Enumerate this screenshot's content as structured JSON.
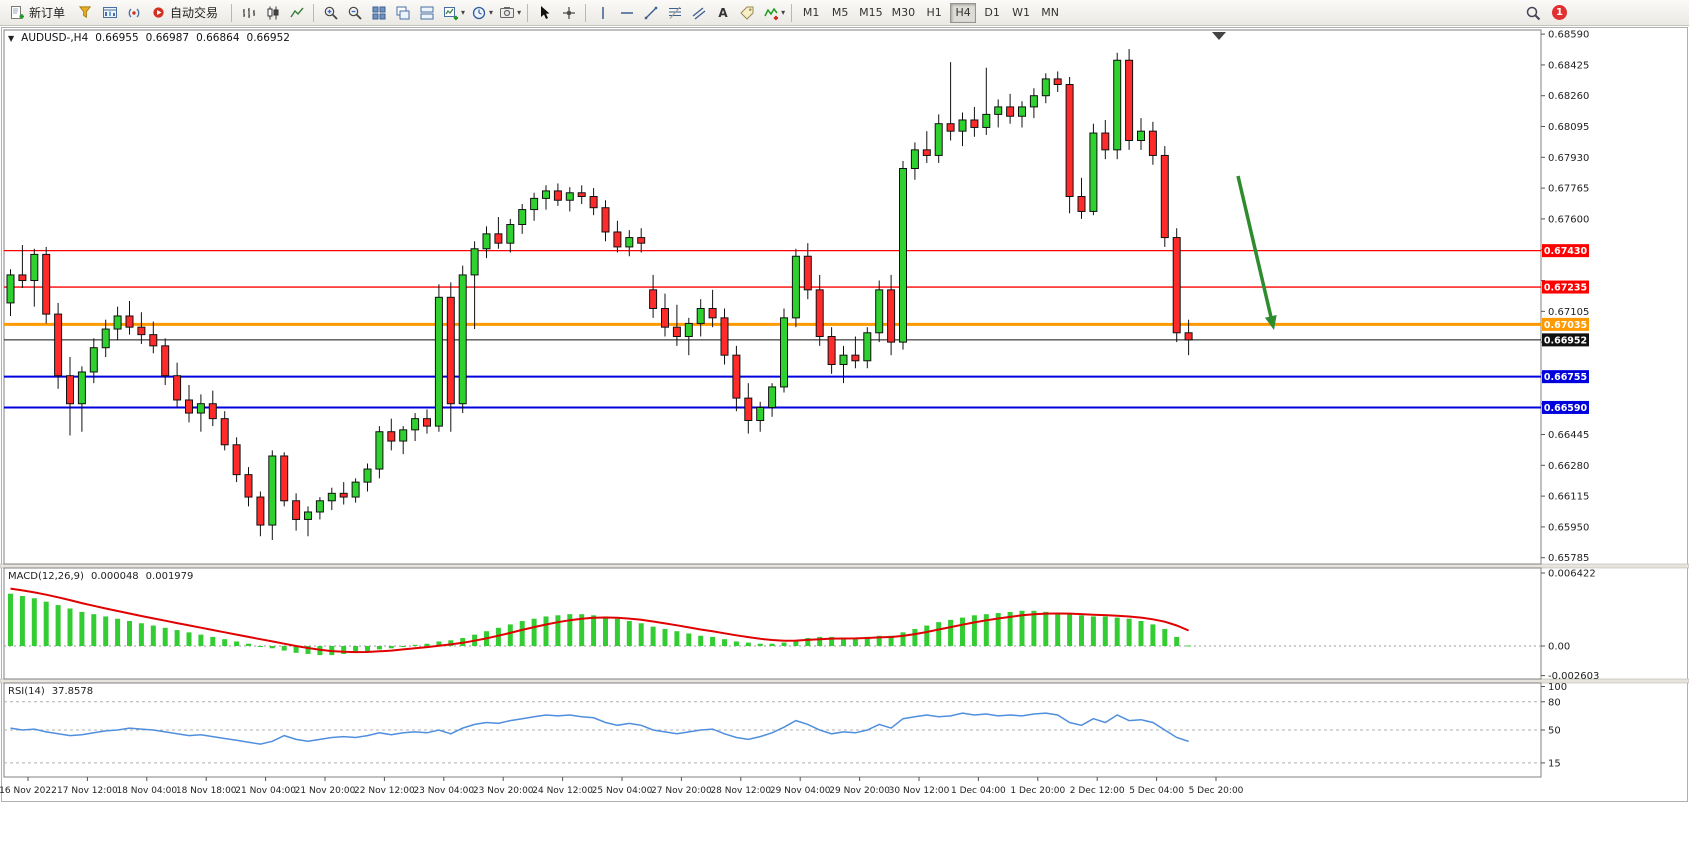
{
  "toolbar": {
    "new_order": "新订单",
    "auto_trading": "自动交易",
    "timeframes": [
      "M1",
      "M5",
      "M15",
      "M30",
      "H1",
      "H4",
      "D1",
      "W1",
      "MN"
    ],
    "active_timeframe": "H4",
    "notification_count": "1"
  },
  "chart": {
    "symbol": "AUDUSD-,H4",
    "open": "0.66955",
    "high": "0.66987",
    "low": "0.66864",
    "close": "0.66952"
  },
  "indicators": {
    "macd": {
      "name": "MACD(12,26,9)",
      "value": "0.000048",
      "signal_value": "0.001979",
      "axis_labels": [
        "0.006422",
        "0.00",
        "-0.002603"
      ]
    },
    "rsi": {
      "name": "RSI(14)",
      "value": "37.8578",
      "axis_labels": [
        "100",
        "80",
        "50",
        "15"
      ],
      "levels": [
        80,
        50,
        15
      ]
    }
  },
  "chart_data": {
    "type": "candlestick",
    "symbol": "AUDUSD",
    "timeframe": "H4",
    "colors": {
      "up": "#2fd12f",
      "down": "#ff2b2b",
      "outline": "#111111",
      "macd_hist": "#33cc33",
      "macd_signal": "#e00000",
      "rsi_line": "#4f8fde",
      "arrow": "#2e8b2e"
    },
    "price_gridlines": [
      0.6859,
      0.68425,
      0.6826,
      0.68095,
      0.6793,
      0.67765,
      0.676,
      0.67435,
      0.6727,
      0.67105,
      0.6694,
      0.66775,
      0.6661,
      0.66445,
      0.6628,
      0.66115,
      0.6595,
      0.65785
    ],
    "hlines": [
      {
        "price": 0.6743,
        "label": "0.67430",
        "color": "#ff0000",
        "width": 1.3
      },
      {
        "price": 0.67235,
        "label": "0.67235",
        "color": "#ff0000",
        "width": 1.3
      },
      {
        "price": 0.67035,
        "label": "0.67035",
        "color": "#ff9900",
        "width": 3
      },
      {
        "price": 0.66755,
        "label": "0.66755",
        "color": "#0000dd",
        "width": 2
      },
      {
        "price": 0.6659,
        "label": "0.66590",
        "color": "#0000dd",
        "width": 2
      }
    ],
    "current_price": {
      "value": 0.66952,
      "label": "0.66952",
      "color": "#111111"
    },
    "arrow": {
      "from": [
        1238,
        176
      ],
      "to": [
        1274,
        330
      ]
    },
    "time_labels": [
      "16 Nov 2022",
      "17 Nov 12:00",
      "18 Nov 04:00",
      "18 Nov 18:00",
      "21 Nov 04:00",
      "21 Nov 20:00",
      "22 Nov 12:00",
      "23 Nov 04:00",
      "23 Nov 20:00",
      "24 Nov 12:00",
      "25 Nov 04:00",
      "27 Nov 20:00",
      "28 Nov 12:00",
      "29 Nov 04:00",
      "29 Nov 20:00",
      "30 Nov 12:00",
      "1 Dec 04:00",
      "1 Dec 20:00",
      "2 Dec 12:00",
      "5 Dec 04:00",
      "5 Dec 20:00"
    ],
    "candles": [
      [
        0.6715,
        0.6733,
        0.6708,
        0.673
      ],
      [
        0.673,
        0.6746,
        0.6723,
        0.6727
      ],
      [
        0.6727,
        0.6744,
        0.6713,
        0.6741
      ],
      [
        0.6741,
        0.6745,
        0.6704,
        0.6709
      ],
      [
        0.6709,
        0.6715,
        0.6669,
        0.6676
      ],
      [
        0.6676,
        0.6686,
        0.6644,
        0.6661
      ],
      [
        0.6661,
        0.6681,
        0.6646,
        0.6678
      ],
      [
        0.6678,
        0.6696,
        0.6672,
        0.6691
      ],
      [
        0.6691,
        0.6706,
        0.6686,
        0.6701
      ],
      [
        0.6701,
        0.6713,
        0.6695,
        0.6708
      ],
      [
        0.6708,
        0.6716,
        0.6698,
        0.6702
      ],
      [
        0.6702,
        0.671,
        0.6693,
        0.6698
      ],
      [
        0.6698,
        0.6705,
        0.6688,
        0.6692
      ],
      [
        0.6692,
        0.6696,
        0.6671,
        0.6676
      ],
      [
        0.6676,
        0.6683,
        0.6659,
        0.6663
      ],
      [
        0.6663,
        0.6671,
        0.6651,
        0.6656
      ],
      [
        0.6656,
        0.6666,
        0.6646,
        0.6661
      ],
      [
        0.6661,
        0.6668,
        0.6649,
        0.6653
      ],
      [
        0.6653,
        0.6657,
        0.6636,
        0.6639
      ],
      [
        0.6639,
        0.6643,
        0.6619,
        0.6623
      ],
      [
        0.6623,
        0.6627,
        0.6606,
        0.6611
      ],
      [
        0.6611,
        0.6614,
        0.659,
        0.6596
      ],
      [
        0.6596,
        0.6636,
        0.6588,
        0.6633
      ],
      [
        0.6633,
        0.6635,
        0.6606,
        0.6609
      ],
      [
        0.6609,
        0.6613,
        0.6593,
        0.6599
      ],
      [
        0.6599,
        0.6606,
        0.659,
        0.6603
      ],
      [
        0.6603,
        0.6611,
        0.6599,
        0.6609
      ],
      [
        0.6609,
        0.6616,
        0.6604,
        0.6613
      ],
      [
        0.6613,
        0.6619,
        0.6607,
        0.6611
      ],
      [
        0.6611,
        0.6621,
        0.6608,
        0.6619
      ],
      [
        0.6619,
        0.6629,
        0.6614,
        0.6626
      ],
      [
        0.6626,
        0.6649,
        0.6621,
        0.6646
      ],
      [
        0.6646,
        0.6653,
        0.6636,
        0.6641
      ],
      [
        0.6641,
        0.6649,
        0.6634,
        0.6647
      ],
      [
        0.6647,
        0.6656,
        0.6641,
        0.6653
      ],
      [
        0.6653,
        0.6658,
        0.6645,
        0.6649
      ],
      [
        0.6649,
        0.6725,
        0.6646,
        0.6718
      ],
      [
        0.6718,
        0.6726,
        0.6646,
        0.6661
      ],
      [
        0.6661,
        0.6735,
        0.6656,
        0.673
      ],
      [
        0.673,
        0.6748,
        0.6701,
        0.6744
      ],
      [
        0.6744,
        0.6756,
        0.6739,
        0.6752
      ],
      [
        0.6752,
        0.6761,
        0.6744,
        0.6747
      ],
      [
        0.6747,
        0.676,
        0.6742,
        0.6757
      ],
      [
        0.6757,
        0.6768,
        0.6752,
        0.6765
      ],
      [
        0.6765,
        0.6774,
        0.6759,
        0.6771
      ],
      [
        0.6771,
        0.6778,
        0.6765,
        0.6775
      ],
      [
        0.6775,
        0.6779,
        0.6767,
        0.677
      ],
      [
        0.677,
        0.6777,
        0.6764,
        0.6774
      ],
      [
        0.6774,
        0.6778,
        0.6768,
        0.6772
      ],
      [
        0.6772,
        0.67765,
        0.6762,
        0.6766
      ],
      [
        0.6766,
        0.677,
        0.6748,
        0.6753
      ],
      [
        0.6753,
        0.6759,
        0.6742,
        0.6745
      ],
      [
        0.6745,
        0.6754,
        0.674,
        0.675
      ],
      [
        0.675,
        0.6755,
        0.6742,
        0.6747
      ],
      [
        0.6722,
        0.673,
        0.6707,
        0.6712
      ],
      [
        0.6712,
        0.672,
        0.6697,
        0.6702
      ],
      [
        0.6702,
        0.6714,
        0.6692,
        0.6697
      ],
      [
        0.6697,
        0.6707,
        0.6687,
        0.6704
      ],
      [
        0.6704,
        0.6717,
        0.6697,
        0.6712
      ],
      [
        0.6712,
        0.6722,
        0.6702,
        0.6707
      ],
      [
        0.6707,
        0.6712,
        0.6682,
        0.6687
      ],
      [
        0.6687,
        0.6692,
        0.6657,
        0.6664
      ],
      [
        0.6664,
        0.6672,
        0.6645,
        0.6652
      ],
      [
        0.6652,
        0.6662,
        0.6646,
        0.6659
      ],
      [
        0.6659,
        0.6672,
        0.6654,
        0.667
      ],
      [
        0.667,
        0.6712,
        0.6667,
        0.6707
      ],
      [
        0.6707,
        0.6744,
        0.6702,
        0.674
      ],
      [
        0.674,
        0.6747,
        0.6717,
        0.6722
      ],
      [
        0.6722,
        0.673,
        0.6692,
        0.6697
      ],
      [
        0.6697,
        0.6702,
        0.6677,
        0.6682
      ],
      [
        0.6682,
        0.6692,
        0.6672,
        0.6687
      ],
      [
        0.6687,
        0.6697,
        0.668,
        0.6684
      ],
      [
        0.6684,
        0.6702,
        0.668,
        0.6699
      ],
      [
        0.6699,
        0.6727,
        0.6694,
        0.6722
      ],
      [
        0.6722,
        0.673,
        0.6687,
        0.6694
      ],
      [
        0.6694,
        0.6791,
        0.669,
        0.6787
      ],
      [
        0.6787,
        0.6801,
        0.6781,
        0.6797
      ],
      [
        0.6797,
        0.6807,
        0.679,
        0.6794
      ],
      [
        0.6794,
        0.6816,
        0.679,
        0.6811
      ],
      [
        0.6811,
        0.6844,
        0.6802,
        0.6807
      ],
      [
        0.6807,
        0.6817,
        0.6799,
        0.6813
      ],
      [
        0.6813,
        0.682,
        0.6804,
        0.6809
      ],
      [
        0.6809,
        0.6841,
        0.6805,
        0.6816
      ],
      [
        0.6816,
        0.6824,
        0.6809,
        0.682
      ],
      [
        0.682,
        0.6827,
        0.6811,
        0.6815
      ],
      [
        0.6815,
        0.6823,
        0.6809,
        0.682
      ],
      [
        0.682,
        0.683,
        0.6814,
        0.6826
      ],
      [
        0.6826,
        0.6838,
        0.6822,
        0.6835
      ],
      [
        0.6835,
        0.6839,
        0.6828,
        0.6832
      ],
      [
        0.6832,
        0.6836,
        0.6763,
        0.6772
      ],
      [
        0.6772,
        0.6782,
        0.676,
        0.6764
      ],
      [
        0.6764,
        0.6811,
        0.6762,
        0.6806
      ],
      [
        0.6806,
        0.6813,
        0.6792,
        0.6797
      ],
      [
        0.6797,
        0.6849,
        0.6792,
        0.6845
      ],
      [
        0.6845,
        0.6851,
        0.6797,
        0.6802
      ],
      [
        0.6802,
        0.6814,
        0.6797,
        0.6807
      ],
      [
        0.6807,
        0.6812,
        0.6789,
        0.6794
      ],
      [
        0.6794,
        0.6799,
        0.6745,
        0.675
      ],
      [
        0.675,
        0.6755,
        0.6694,
        0.6699
      ],
      [
        0.6699,
        0.6706,
        0.6687,
        0.66952
      ]
    ],
    "macd_histogram": [
      0.0046,
      0.0044,
      0.0042,
      0.0039,
      0.0036,
      0.0033,
      0.003,
      0.0028,
      0.0026,
      0.0024,
      0.0022,
      0.002,
      0.0018,
      0.0016,
      0.0014,
      0.0012,
      0.001,
      0.0008,
      0.0006,
      0.0004,
      0.0002,
      0.0,
      -0.0002,
      -0.0004,
      -0.0006,
      -0.0007,
      -0.0008,
      -0.0008,
      -0.0007,
      -0.0006,
      -0.0005,
      -0.0003,
      -0.0002,
      0.0,
      0.0001,
      0.0002,
      0.0004,
      0.0005,
      0.0007,
      0.001,
      0.0013,
      0.0016,
      0.0019,
      0.0022,
      0.0024,
      0.0026,
      0.0027,
      0.0028,
      0.0028,
      0.0027,
      0.0026,
      0.0024,
      0.0022,
      0.002,
      0.0017,
      0.0015,
      0.0013,
      0.0011,
      0.0009,
      0.0008,
      0.0006,
      0.0004,
      0.0003,
      0.0002,
      0.0002,
      0.0003,
      0.0005,
      0.0007,
      0.0008,
      0.0008,
      0.0007,
      0.0007,
      0.0008,
      0.0009,
      0.0009,
      0.0012,
      0.0015,
      0.0018,
      0.0021,
      0.0023,
      0.0025,
      0.0027,
      0.0028,
      0.0029,
      0.003,
      0.0031,
      0.0031,
      0.003,
      0.0029,
      0.0028,
      0.0027,
      0.0026,
      0.0026,
      0.0025,
      0.0024,
      0.0022,
      0.0019,
      0.0015,
      0.0008,
      4.8e-05
    ],
    "macd_signal_start": 0.0052,
    "rsi_values": [
      52,
      50,
      51,
      48,
      46,
      44,
      45,
      47,
      49,
      50,
      52,
      51,
      50,
      48,
      46,
      44,
      45,
      43,
      41,
      39,
      37,
      35,
      38,
      44,
      40,
      38,
      40,
      42,
      43,
      42,
      44,
      47,
      45,
      47,
      48,
      47,
      50,
      46,
      52,
      56,
      58,
      57,
      60,
      62,
      64,
      66,
      65,
      66,
      64,
      63,
      58,
      55,
      57,
      55,
      50,
      48,
      46,
      48,
      50,
      51,
      46,
      42,
      40,
      43,
      47,
      53,
      60,
      56,
      50,
      46,
      48,
      47,
      50,
      56,
      52,
      62,
      64,
      66,
      64,
      65,
      68,
      66,
      67,
      65,
      66,
      65,
      67,
      68,
      66,
      58,
      55,
      62,
      58,
      66,
      60,
      61,
      58,
      50,
      42,
      37.8578
    ]
  }
}
